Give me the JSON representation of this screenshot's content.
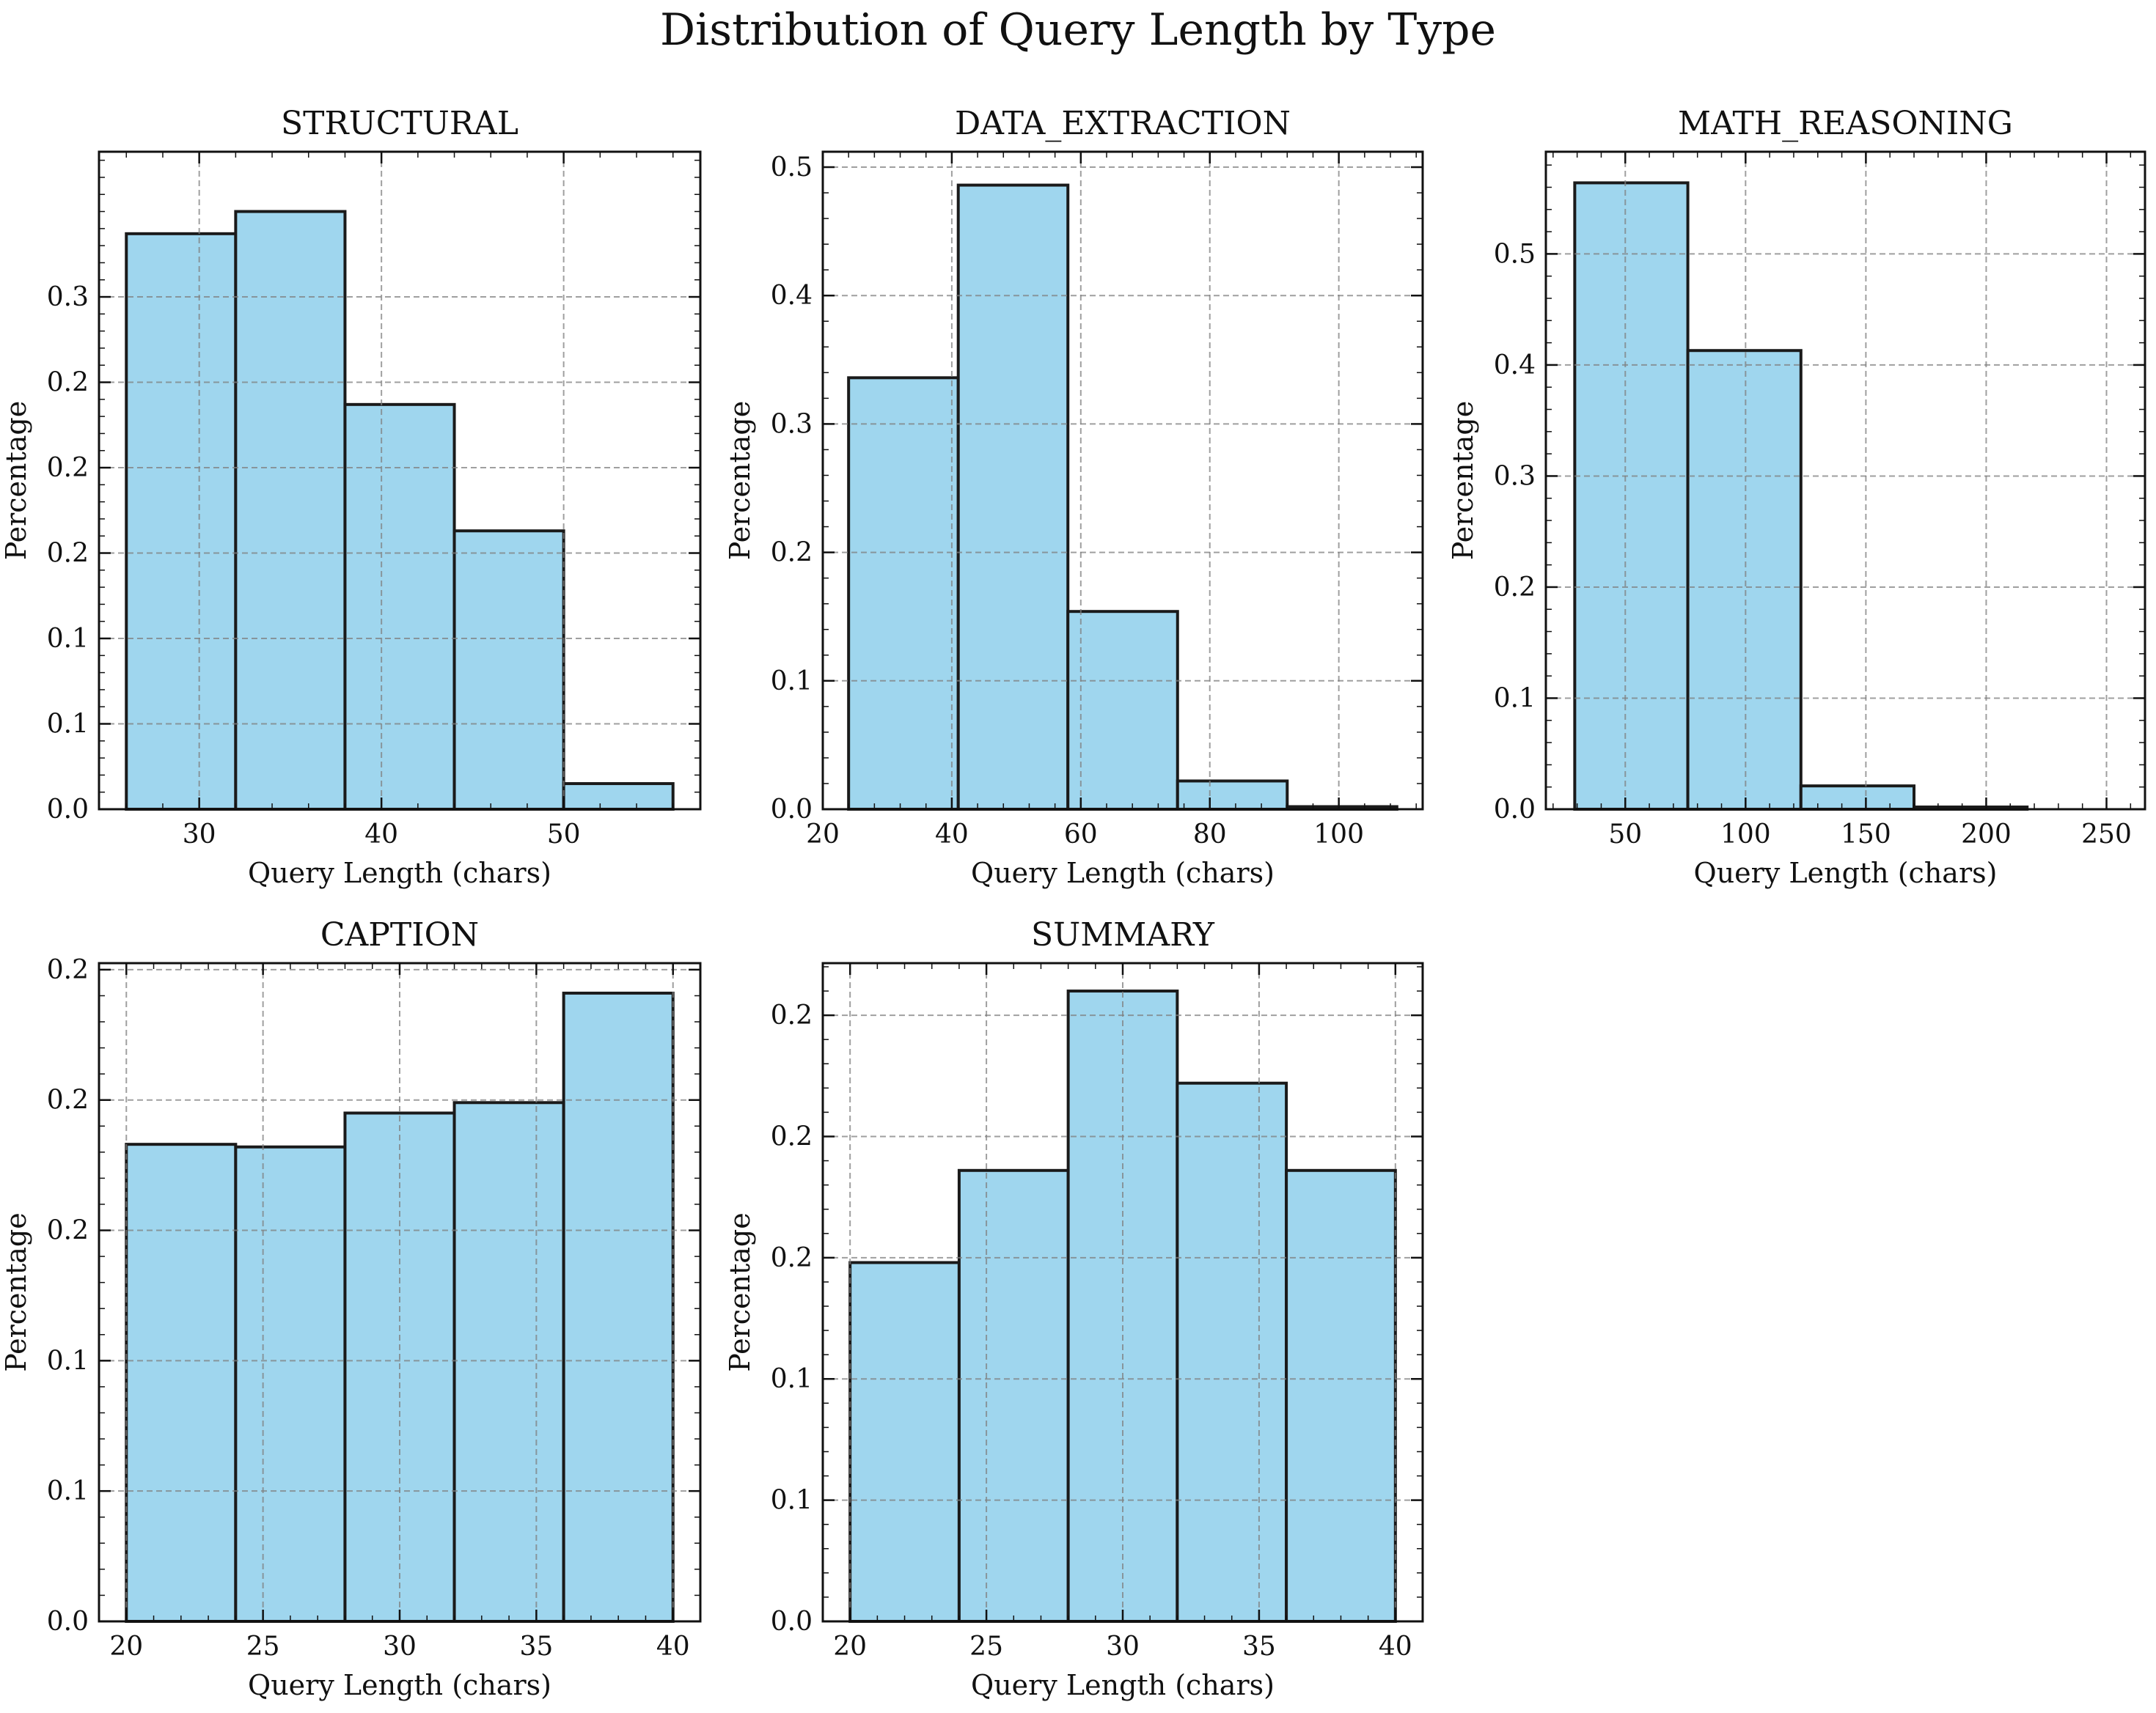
{
  "figure": {
    "title": "Distribution of Query Length by Type"
  },
  "style": {
    "bar_fill": "#9fd6ee",
    "bar_edge": "#1a1a1a",
    "grid_color": "#808080",
    "frame_color": "#111111"
  },
  "chart_data": [
    {
      "type": "bar",
      "title": "STRUCTURAL",
      "xlabel": "Query Length (chars)",
      "ylabel": "Percentage",
      "bins": [
        [
          26,
          32
        ],
        [
          32,
          38
        ],
        [
          38,
          44
        ],
        [
          44,
          50
        ],
        [
          50,
          56
        ]
      ],
      "values": [
        0.337,
        0.35,
        0.237,
        0.163,
        0.015
      ],
      "xlim": [
        24.5,
        57.5
      ],
      "ylim": [
        0,
        0.385
      ],
      "xticks": [
        30,
        40,
        50
      ],
      "xtick_labels": [
        "30",
        "40",
        "50"
      ],
      "yticks": [
        0,
        0.05,
        0.1,
        0.15,
        0.2,
        0.25,
        0.3
      ],
      "ytick_labels": [
        "0.0",
        "0.1",
        "0.1",
        "0.2",
        "0.2",
        "0.2",
        "0.3"
      ],
      "grid": true
    },
    {
      "type": "bar",
      "title": "DATA_EXTRACTION",
      "xlabel": "Query Length (chars)",
      "ylabel": "Percentage",
      "bins": [
        [
          24,
          41
        ],
        [
          41,
          58
        ],
        [
          58,
          75
        ],
        [
          75,
          92
        ],
        [
          92,
          109
        ]
      ],
      "values": [
        0.336,
        0.486,
        0.154,
        0.022,
        0.002
      ],
      "xlim": [
        20,
        113
      ],
      "ylim": [
        0,
        0.512
      ],
      "xticks": [
        20,
        40,
        60,
        80,
        100
      ],
      "xtick_labels": [
        "20",
        "40",
        "60",
        "80",
        "100"
      ],
      "yticks": [
        0,
        0.1,
        0.2,
        0.3,
        0.4,
        0.5
      ],
      "ytick_labels": [
        "0.0",
        "0.1",
        "0.2",
        "0.3",
        "0.4",
        "0.5"
      ],
      "grid": true
    },
    {
      "type": "bar",
      "title": "MATH_REASONING",
      "xlabel": "Query Length (chars)",
      "ylabel": "Percentage",
      "bins": [
        [
          29,
          76
        ],
        [
          76,
          123
        ],
        [
          123,
          170
        ],
        [
          170,
          217
        ],
        [
          217,
          264
        ]
      ],
      "values": [
        0.564,
        0.413,
        0.021,
        0.002,
        0.0
      ],
      "xlim": [
        17,
        266
      ],
      "ylim": [
        0,
        0.592
      ],
      "xticks": [
        50,
        100,
        150,
        200,
        250
      ],
      "xtick_labels": [
        "50",
        "100",
        "150",
        "200",
        "250"
      ],
      "yticks": [
        0,
        0.1,
        0.2,
        0.3,
        0.4,
        0.5
      ],
      "ytick_labels": [
        "0.0",
        "0.1",
        "0.2",
        "0.3",
        "0.4",
        "0.5"
      ],
      "grid": true
    },
    {
      "type": "bar",
      "title": "CAPTION",
      "xlabel": "Query Length (chars)",
      "ylabel": "Percentage",
      "bins": [
        [
          20,
          24
        ],
        [
          24,
          28
        ],
        [
          28,
          32
        ],
        [
          32,
          36
        ],
        [
          36,
          40
        ]
      ],
      "values": [
        0.183,
        0.182,
        0.195,
        0.199,
        0.241
      ],
      "xlim": [
        19,
        41
      ],
      "ylim": [
        0,
        0.2525
      ],
      "xticks": [
        20,
        25,
        30,
        35,
        40
      ],
      "xtick_labels": [
        "20",
        "25",
        "30",
        "35",
        "40"
      ],
      "yticks": [
        0,
        0.05,
        0.1,
        0.15,
        0.2,
        0.25
      ],
      "ytick_labels": [
        "0.0",
        "0.1",
        "0.1",
        "0.2",
        "0.2",
        "0.2"
      ],
      "grid": true
    },
    {
      "type": "bar",
      "title": "SUMMARY",
      "xlabel": "Query Length (chars)",
      "ylabel": "Percentage",
      "bins": [
        [
          20,
          24
        ],
        [
          24,
          28
        ],
        [
          28,
          32
        ],
        [
          32,
          36
        ],
        [
          36,
          40
        ]
      ],
      "values": [
        0.148,
        0.186,
        0.26,
        0.222,
        0.186
      ],
      "xlim": [
        19,
        41
      ],
      "ylim": [
        0,
        0.2715
      ],
      "xticks": [
        20,
        25,
        30,
        35,
        40
      ],
      "xtick_labels": [
        "20",
        "25",
        "30",
        "35",
        "40"
      ],
      "yticks": [
        0,
        0.05,
        0.1,
        0.15,
        0.2,
        0.25
      ],
      "ytick_labels": [
        "0.0",
        "0.1",
        "0.1",
        "0.2",
        "0.2",
        "0.2"
      ],
      "grid": true
    }
  ]
}
